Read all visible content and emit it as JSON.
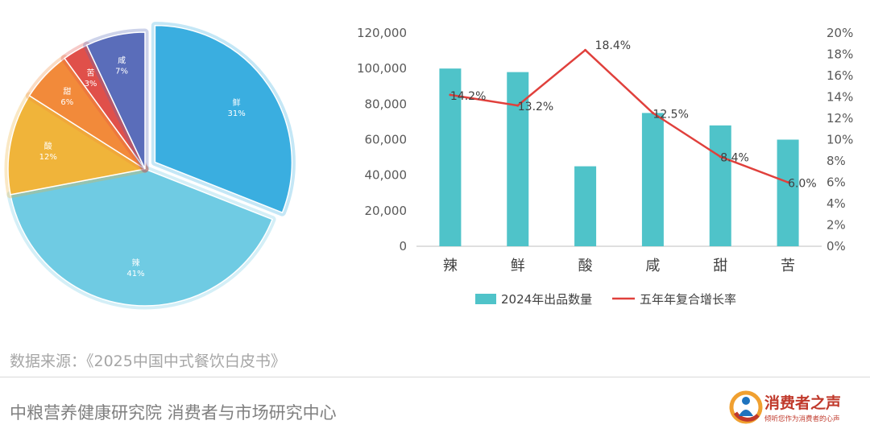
{
  "chart_data": [
    {
      "type": "pie",
      "exploded": "鲜",
      "slices": [
        {
          "label": "鲜",
          "value": 31,
          "display": "31%",
          "color": "#3aaee0"
        },
        {
          "label": "辣",
          "value": 41,
          "display": "41%",
          "color": "#6fcbe3"
        },
        {
          "label": "酸",
          "value": 12,
          "display": "12%",
          "color": "#f0b43a"
        },
        {
          "label": "甜",
          "value": 6,
          "display": "6%",
          "color": "#f28a3a"
        },
        {
          "label": "苦",
          "value": 3,
          "display": "3%",
          "color": "#e0504a"
        },
        {
          "label": "咸",
          "value": 7,
          "display": "7%",
          "color": "#5a6dba"
        }
      ]
    },
    {
      "type": "bar+line",
      "categories": [
        "辣",
        "鲜",
        "酸",
        "咸",
        "甜",
        "苦"
      ],
      "series": [
        {
          "name": "2024年出品数量",
          "type": "bar",
          "axis": "left",
          "color": "#4fc3c9",
          "values": [
            100000,
            98000,
            45000,
            75000,
            68000,
            60000
          ]
        },
        {
          "name": "五年年复合增长率",
          "type": "line",
          "axis": "right",
          "color": "#e0403c",
          "values": [
            14.2,
            13.2,
            18.4,
            12.5,
            8.4,
            6.0
          ],
          "value_labels": [
            "14.2%",
            "13.2%",
            "18.4%",
            "12.5%",
            "8.4%",
            "6.0%"
          ]
        }
      ],
      "left_axis": {
        "min": 0,
        "max": 120000,
        "ticks": [
          "0",
          "20,000",
          "40,000",
          "60,000",
          "80,000",
          "100,000",
          "120,000"
        ]
      },
      "right_axis": {
        "min": 0,
        "max": 20,
        "ticks": [
          "0%",
          "2%",
          "4%",
          "6%",
          "8%",
          "10%",
          "12%",
          "14%",
          "16%",
          "18%",
          "20%"
        ]
      },
      "legend_position": "bottom",
      "grid": false
    }
  ],
  "footer": {
    "source": "数据来源：《2025中国中式餐饮白皮书》",
    "org": "中粮营养健康研究院 消费者与市场研究中心",
    "brand_name": "消费者之声",
    "brand_slogan": "倾听您作为消费者的心声"
  }
}
